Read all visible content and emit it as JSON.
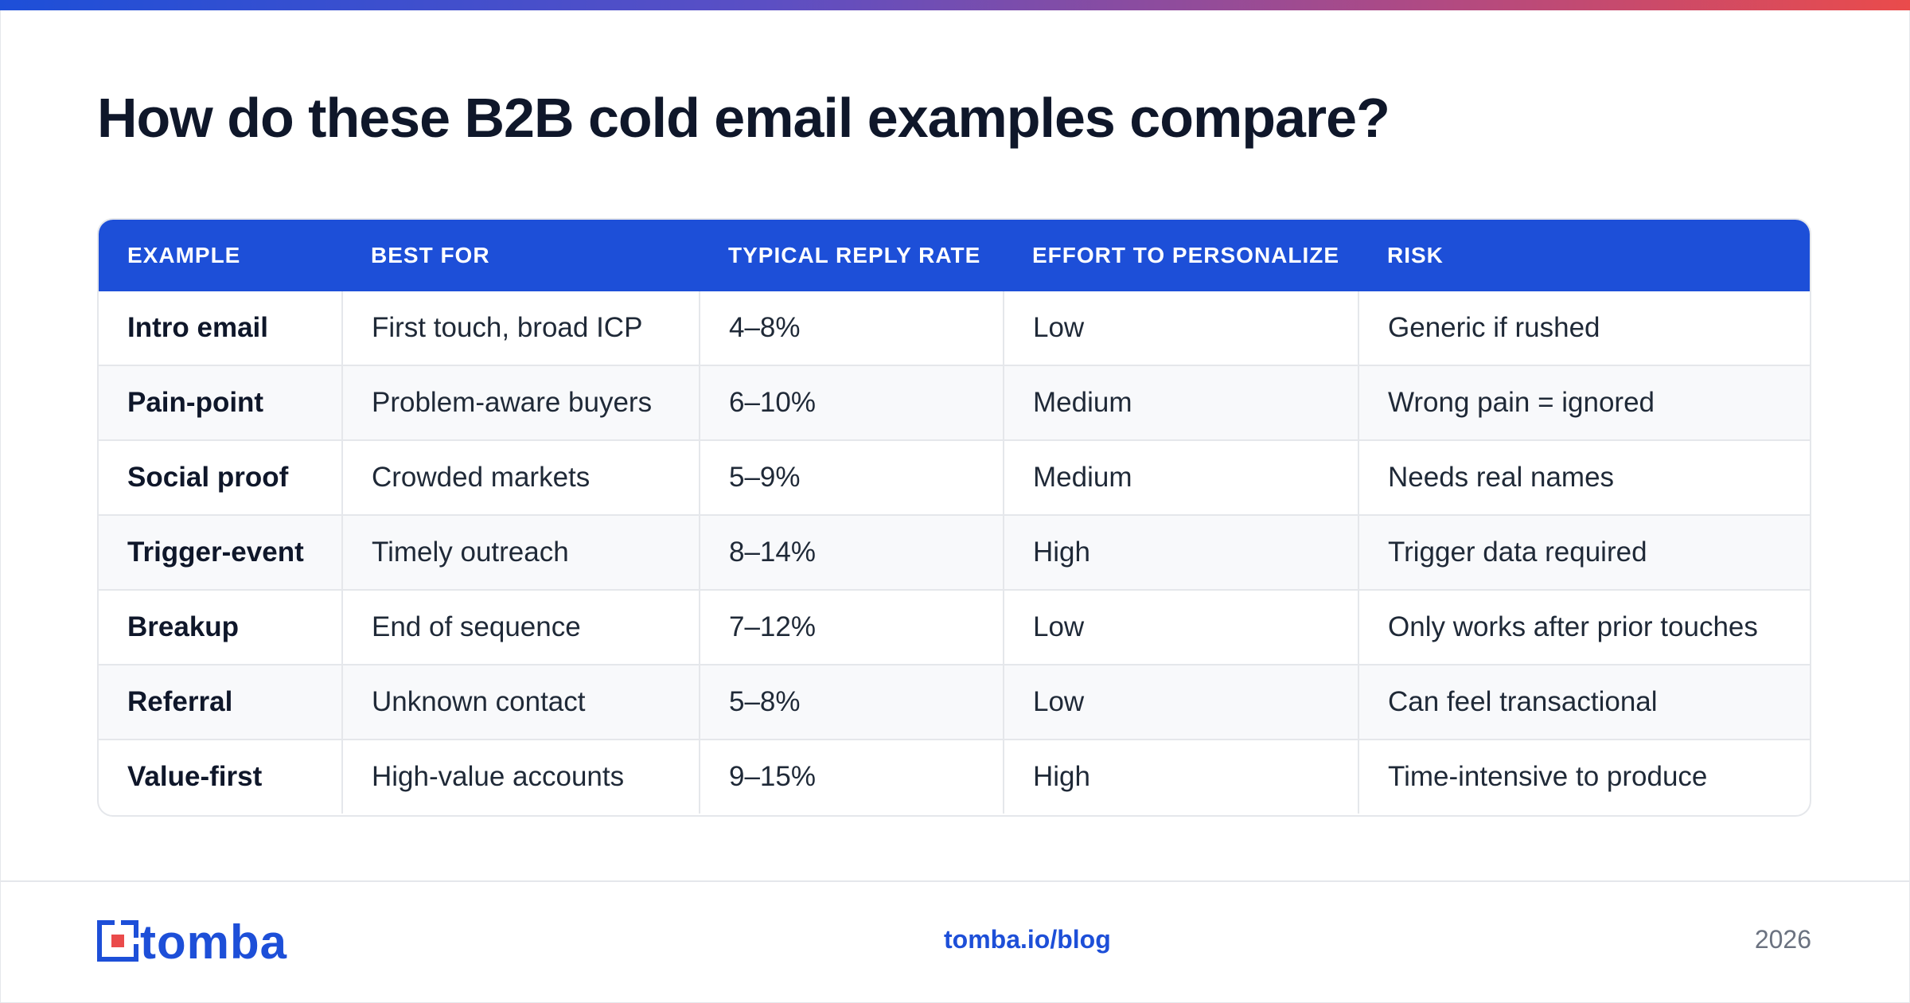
{
  "title": "How do these B2B cold email examples compare?",
  "table": {
    "headers": [
      "EXAMPLE",
      "BEST FOR",
      "TYPICAL REPLY RATE",
      "EFFORT TO PERSONALIZE",
      "RISK"
    ],
    "rows": [
      [
        "Intro email",
        "First touch, broad ICP",
        "4–8%",
        "Low",
        "Generic if rushed"
      ],
      [
        "Pain-point",
        "Problem-aware buyers",
        "6–10%",
        "Medium",
        "Wrong pain = ignored"
      ],
      [
        "Social proof",
        "Crowded markets",
        "5–9%",
        "Medium",
        "Needs real names"
      ],
      [
        "Trigger-event",
        "Timely outreach",
        "8–14%",
        "High",
        "Trigger data required"
      ],
      [
        "Breakup",
        "End of sequence",
        "7–12%",
        "Low",
        "Only works after prior touches"
      ],
      [
        "Referral",
        "Unknown contact",
        "5–8%",
        "Low",
        "Can feel transactional"
      ],
      [
        "Value-first",
        "High-value accounts",
        "9–15%",
        "High",
        "Time-intensive to produce"
      ]
    ]
  },
  "footer": {
    "brand": "tomba",
    "link": "tomba.io/blog",
    "year": "2026"
  },
  "colors": {
    "accent": "#1d4fd8",
    "accent_red": "#ea4b4b",
    "gradient_start": "#1d4fd8",
    "gradient_end": "#ea4b4b"
  },
  "icons": {
    "logo": "tomba-logo-icon"
  }
}
